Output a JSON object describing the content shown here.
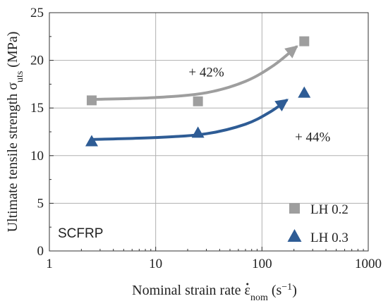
{
  "chart_data": {
    "type": "scatter",
    "xscale": "log",
    "xlim": [
      1,
      1000
    ],
    "ylim": [
      0,
      25
    ],
    "xticks": [
      1,
      10,
      100,
      1000
    ],
    "xtick_labels": [
      "1",
      "10",
      "100",
      "1000"
    ],
    "yticks": [
      0,
      5,
      10,
      15,
      20,
      25
    ],
    "ytick_labels": [
      "0",
      "5",
      "10",
      "15",
      "20",
      "25"
    ],
    "grid": true,
    "xlabel": {
      "prefix": "Nominal strain rate ",
      "symbol": "ε",
      "subscript": "nom",
      "unit": " (s",
      "unit_exp": "−1",
      "unit_end": ")"
    },
    "ylabel": {
      "text": "Ultimate tensile strength σ",
      "subscript": "uts",
      "unit": " (MPa)"
    },
    "panel_label": "SCFRP",
    "legend_position": "bottom-right",
    "series": [
      {
        "name": "LH 0.2",
        "marker": "square",
        "color": "#9e9e9e",
        "x": [
          2.5,
          25,
          250
        ],
        "y": [
          15.8,
          15.7,
          22.0
        ],
        "trend": {
          "x": [
            2.5,
            10,
            30,
            70,
            130,
            210
          ],
          "y": [
            15.9,
            16.1,
            16.6,
            17.8,
            19.5,
            21.4
          ]
        }
      },
      {
        "name": "LH 0.3",
        "marker": "triangle",
        "color": "#2e5c95",
        "x": [
          2.5,
          25,
          250
        ],
        "y": [
          11.5,
          12.4,
          16.6
        ],
        "trend": {
          "x": [
            2.5,
            10,
            30,
            70,
            120,
            170
          ],
          "y": [
            11.7,
            11.9,
            12.3,
            13.3,
            14.6,
            15.8
          ]
        }
      }
    ],
    "annotations": [
      {
        "text": "+ 42%",
        "x": 30,
        "y": 18.3
      },
      {
        "text": "+ 44%",
        "x": 300,
        "y": 11.5
      }
    ]
  }
}
